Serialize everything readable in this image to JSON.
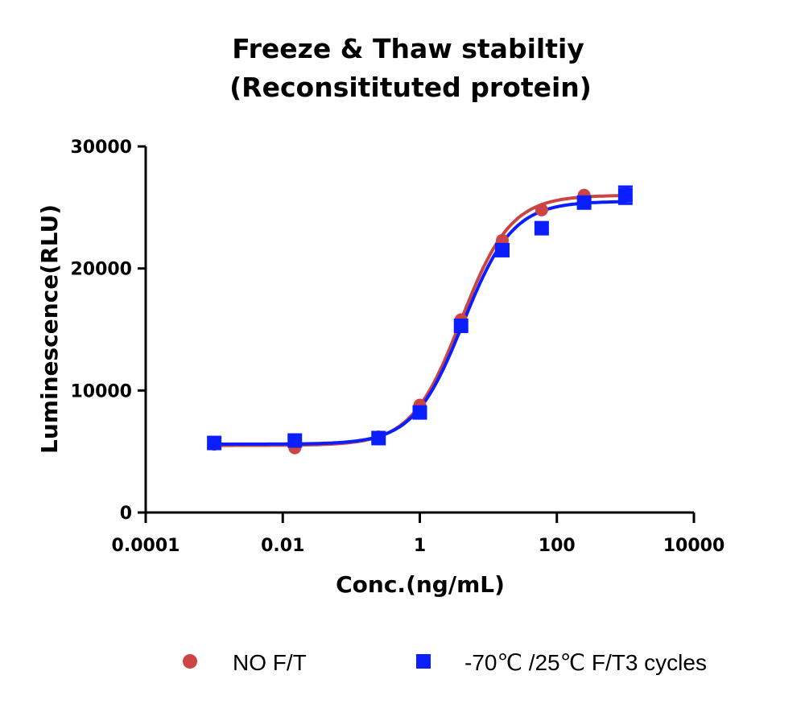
{
  "chart_data": {
    "type": "scatter",
    "title": [
      "Freeze & Thaw stabiltiy",
      "(Reconsitituted protein)"
    ],
    "xlabel": "Conc.(ng/mL)",
    "ylabel": "Luminescence(RLU)",
    "x_scale": "log",
    "xlim": [
      0.0001,
      10000
    ],
    "ylim": [
      0,
      30000
    ],
    "x_ticks": [
      0.0001,
      0.01,
      1,
      100,
      10000
    ],
    "x_tick_labels": [
      "0.0001",
      "0.01",
      "1",
      "100",
      "10000"
    ],
    "y_ticks": [
      0,
      10000,
      20000,
      30000
    ],
    "y_tick_labels": [
      "0",
      "10000",
      "20000",
      "30000"
    ],
    "grid": false,
    "legend_position": "bottom",
    "x": [
      0.001,
      0.015,
      0.25,
      1.0,
      4.0,
      16.0,
      60.0,
      250.0,
      1000.0
    ],
    "series": [
      {
        "name": "NO F/T",
        "marker": "circle",
        "color": "#cc4444",
        "values": [
          5600,
          5300,
          6200,
          8800,
          15800,
          22300,
          24800,
          26000,
          26200
        ],
        "fit": {
          "bottom": 5500,
          "top": 26000,
          "ec50": 4.0,
          "hill": 1.2
        }
      },
      {
        "name": "-70℃ /25℃  F/T3 cycles",
        "marker": "square",
        "color": "#0a1eff",
        "values": [
          5700,
          5900,
          6100,
          8200,
          15300,
          21500,
          23300,
          25400,
          26000
        ],
        "error": [
          0,
          0,
          0,
          0,
          0,
          0,
          0,
          0,
          700
        ],
        "fit": {
          "bottom": 5600,
          "top": 25500,
          "ec50": 4.3,
          "hill": 1.2
        }
      }
    ]
  }
}
